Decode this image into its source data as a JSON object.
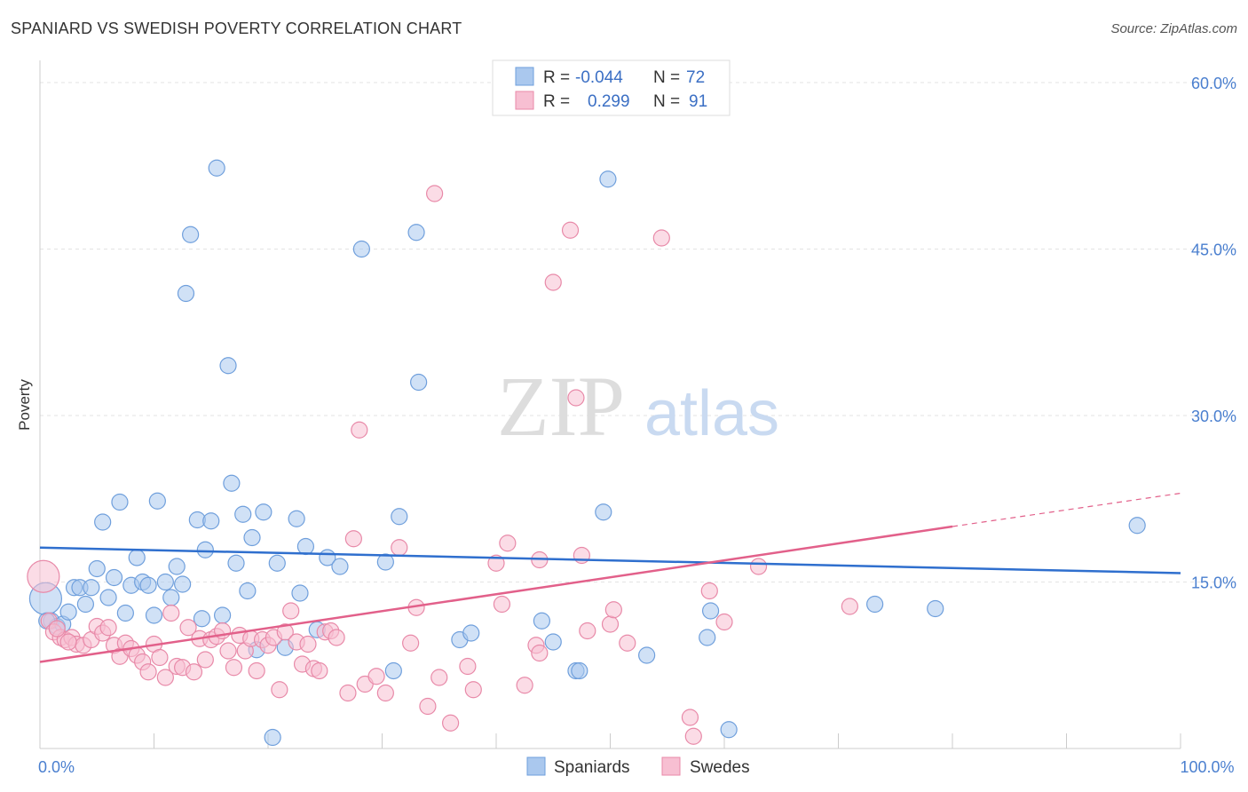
{
  "title": "SPANIARD VS SWEDISH POVERTY CORRELATION CHART",
  "source": "Source: ZipAtlas.com",
  "watermark": {
    "zip": "ZIP",
    "atlas": "atlas"
  },
  "chart_data": {
    "type": "scatter",
    "ylabel": "Poverty",
    "xlim": [
      0,
      100
    ],
    "ylim": [
      0,
      62
    ],
    "y_ticks": [
      {
        "value": 15,
        "label": "15.0%"
      },
      {
        "value": 30,
        "label": "30.0%"
      },
      {
        "value": 45,
        "label": "45.0%"
      },
      {
        "value": 60,
        "label": "60.0%"
      }
    ],
    "x_ticks": [
      {
        "value": 0,
        "label": "0.0%"
      },
      {
        "value": 100,
        "label": "100.0%"
      }
    ],
    "grid": true,
    "legend_position": "top-center",
    "legend": [
      {
        "r_label": "R =",
        "r_value": "-0.044",
        "n_label": "N =",
        "n_value": "72",
        "color": "#aac8ee",
        "stroke": "#6f9fdc"
      },
      {
        "r_label": "R =",
        "r_value": "0.299",
        "n_label": "N =",
        "n_value": "91",
        "color": "#f7bfd2",
        "stroke": "#e889a8"
      }
    ],
    "series": [
      {
        "name": "Spaniards",
        "color": "#aac8ee",
        "stroke": "#6f9fdc",
        "trend_color": "#2f6fce",
        "trend": {
          "x0": 0,
          "y0": 18.1,
          "x1": 100,
          "y1": 15.8
        },
        "points": [
          [
            0.5,
            13.5
          ],
          [
            1,
            11.5
          ],
          [
            1.5,
            11
          ],
          [
            2,
            11.2
          ],
          [
            2.5,
            12.3
          ],
          [
            3,
            14.5
          ],
          [
            3.5,
            14.5
          ],
          [
            4,
            13
          ],
          [
            4.5,
            14.5
          ],
          [
            5,
            16.2
          ],
          [
            5.5,
            20.4
          ],
          [
            6,
            13.6
          ],
          [
            6.5,
            15.4
          ],
          [
            7,
            22.2
          ],
          [
            7.5,
            12.2
          ],
          [
            8,
            14.7
          ],
          [
            8.5,
            17.2
          ],
          [
            9,
            15
          ],
          [
            9.5,
            14.7
          ],
          [
            10,
            12
          ],
          [
            10.3,
            22.3
          ],
          [
            11,
            15
          ],
          [
            11.5,
            13.6
          ],
          [
            12,
            16.4
          ],
          [
            12.5,
            14.8
          ],
          [
            12.8,
            41
          ],
          [
            13.2,
            46.3
          ],
          [
            13.8,
            20.6
          ],
          [
            14.2,
            11.7
          ],
          [
            14.5,
            17.9
          ],
          [
            15,
            20.5
          ],
          [
            15.5,
            52.3
          ],
          [
            16,
            12
          ],
          [
            16.5,
            34.5
          ],
          [
            16.8,
            23.9
          ],
          [
            17.2,
            16.7
          ],
          [
            17.8,
            21.1
          ],
          [
            18.2,
            14.2
          ],
          [
            18.6,
            19
          ],
          [
            19,
            8.9
          ],
          [
            19.6,
            21.3
          ],
          [
            20.4,
            1
          ],
          [
            20.8,
            16.7
          ],
          [
            21.5,
            9.1
          ],
          [
            22.5,
            20.7
          ],
          [
            22.8,
            14
          ],
          [
            23.3,
            18.2
          ],
          [
            24.3,
            10.7
          ],
          [
            25.2,
            17.2
          ],
          [
            26.3,
            16.4
          ],
          [
            28.2,
            45
          ],
          [
            30.3,
            16.8
          ],
          [
            31,
            7
          ],
          [
            31.5,
            20.9
          ],
          [
            33,
            46.5
          ],
          [
            33.2,
            33
          ],
          [
            49.8,
            51.3
          ],
          [
            49.4,
            21.3
          ],
          [
            36.8,
            9.8
          ],
          [
            37.8,
            10.4
          ],
          [
            44,
            11.5
          ],
          [
            45,
            9.6
          ],
          [
            47,
            7
          ],
          [
            47.3,
            7
          ],
          [
            53.2,
            8.4
          ],
          [
            58.5,
            10
          ],
          [
            58.8,
            12.4
          ],
          [
            60.4,
            1.7
          ],
          [
            73.2,
            13
          ],
          [
            78.5,
            12.6
          ],
          [
            96.2,
            20.1
          ],
          [
            0.6,
            11.5
          ]
        ]
      },
      {
        "name": "Swedes",
        "color": "#f7bfd2",
        "stroke": "#e889a8",
        "trend_color": "#e2608a",
        "trend": {
          "x0": 0,
          "y0": 7.8,
          "x1": 80,
          "y1": 20
        },
        "trend_dashed": {
          "x0": 80,
          "y0": 20,
          "x1": 100,
          "y1": 23
        },
        "points": [
          [
            0.3,
            15.5
          ],
          [
            0.8,
            11.5
          ],
          [
            1.2,
            10.5
          ],
          [
            1.8,
            10
          ],
          [
            2.2,
            9.8
          ],
          [
            2.8,
            10
          ],
          [
            3.2,
            9.4
          ],
          [
            3.8,
            9.3
          ],
          [
            4.5,
            9.8
          ],
          [
            5,
            11
          ],
          [
            5.5,
            10.4
          ],
          [
            6,
            10.9
          ],
          [
            6.5,
            9.3
          ],
          [
            7,
            8.3
          ],
          [
            7.5,
            9.5
          ],
          [
            8,
            9
          ],
          [
            8.5,
            8.4
          ],
          [
            9,
            7.8
          ],
          [
            9.5,
            6.9
          ],
          [
            10,
            9.4
          ],
          [
            10.5,
            8.2
          ],
          [
            11,
            6.4
          ],
          [
            11.5,
            12.2
          ],
          [
            12,
            7.4
          ],
          [
            12.5,
            7.3
          ],
          [
            13,
            10.9
          ],
          [
            13.5,
            6.9
          ],
          [
            14,
            9.9
          ],
          [
            14.5,
            8
          ],
          [
            15,
            9.8
          ],
          [
            15.5,
            10.1
          ],
          [
            16,
            10.6
          ],
          [
            16.5,
            8.8
          ],
          [
            17,
            7.3
          ],
          [
            17.5,
            10.2
          ],
          [
            18,
            8.8
          ],
          [
            18.5,
            9.9
          ],
          [
            19,
            7
          ],
          [
            19.5,
            9.8
          ],
          [
            20,
            9.3
          ],
          [
            20.5,
            10
          ],
          [
            21,
            5.3
          ],
          [
            21.5,
            10.5
          ],
          [
            22,
            12.4
          ],
          [
            22.5,
            9.6
          ],
          [
            23,
            7.6
          ],
          [
            23.5,
            9.4
          ],
          [
            24,
            7.2
          ],
          [
            24.5,
            7
          ],
          [
            25,
            10.5
          ],
          [
            25.5,
            10.6
          ],
          [
            26,
            10
          ],
          [
            27,
            5
          ],
          [
            27.5,
            18.9
          ],
          [
            28,
            28.7
          ],
          [
            28.5,
            5.8
          ],
          [
            29.5,
            6.5
          ],
          [
            30.3,
            5
          ],
          [
            31.5,
            18.1
          ],
          [
            32.5,
            9.5
          ],
          [
            33,
            12.7
          ],
          [
            34,
            3.8
          ],
          [
            34.6,
            50
          ],
          [
            35,
            6.4
          ],
          [
            36,
            2.3
          ],
          [
            37.5,
            7.4
          ],
          [
            38,
            5.3
          ],
          [
            40,
            16.7
          ],
          [
            40.5,
            13
          ],
          [
            41,
            18.5
          ],
          [
            42.5,
            5.7
          ],
          [
            43.5,
            9.3
          ],
          [
            43.8,
            8.6
          ],
          [
            43.8,
            17
          ],
          [
            45,
            42
          ],
          [
            46.5,
            46.7
          ],
          [
            47,
            31.6
          ],
          [
            47.5,
            17.4
          ],
          [
            48,
            10.6
          ],
          [
            50,
            11.2
          ],
          [
            50.3,
            12.5
          ],
          [
            51.5,
            9.5
          ],
          [
            54.5,
            46
          ],
          [
            57,
            2.8
          ],
          [
            57.3,
            1.1
          ],
          [
            58.7,
            14.2
          ],
          [
            60,
            11.4
          ],
          [
            63,
            16.4
          ],
          [
            71,
            12.8
          ],
          [
            1.5,
            10.8
          ],
          [
            2.5,
            9.6
          ]
        ]
      }
    ]
  }
}
